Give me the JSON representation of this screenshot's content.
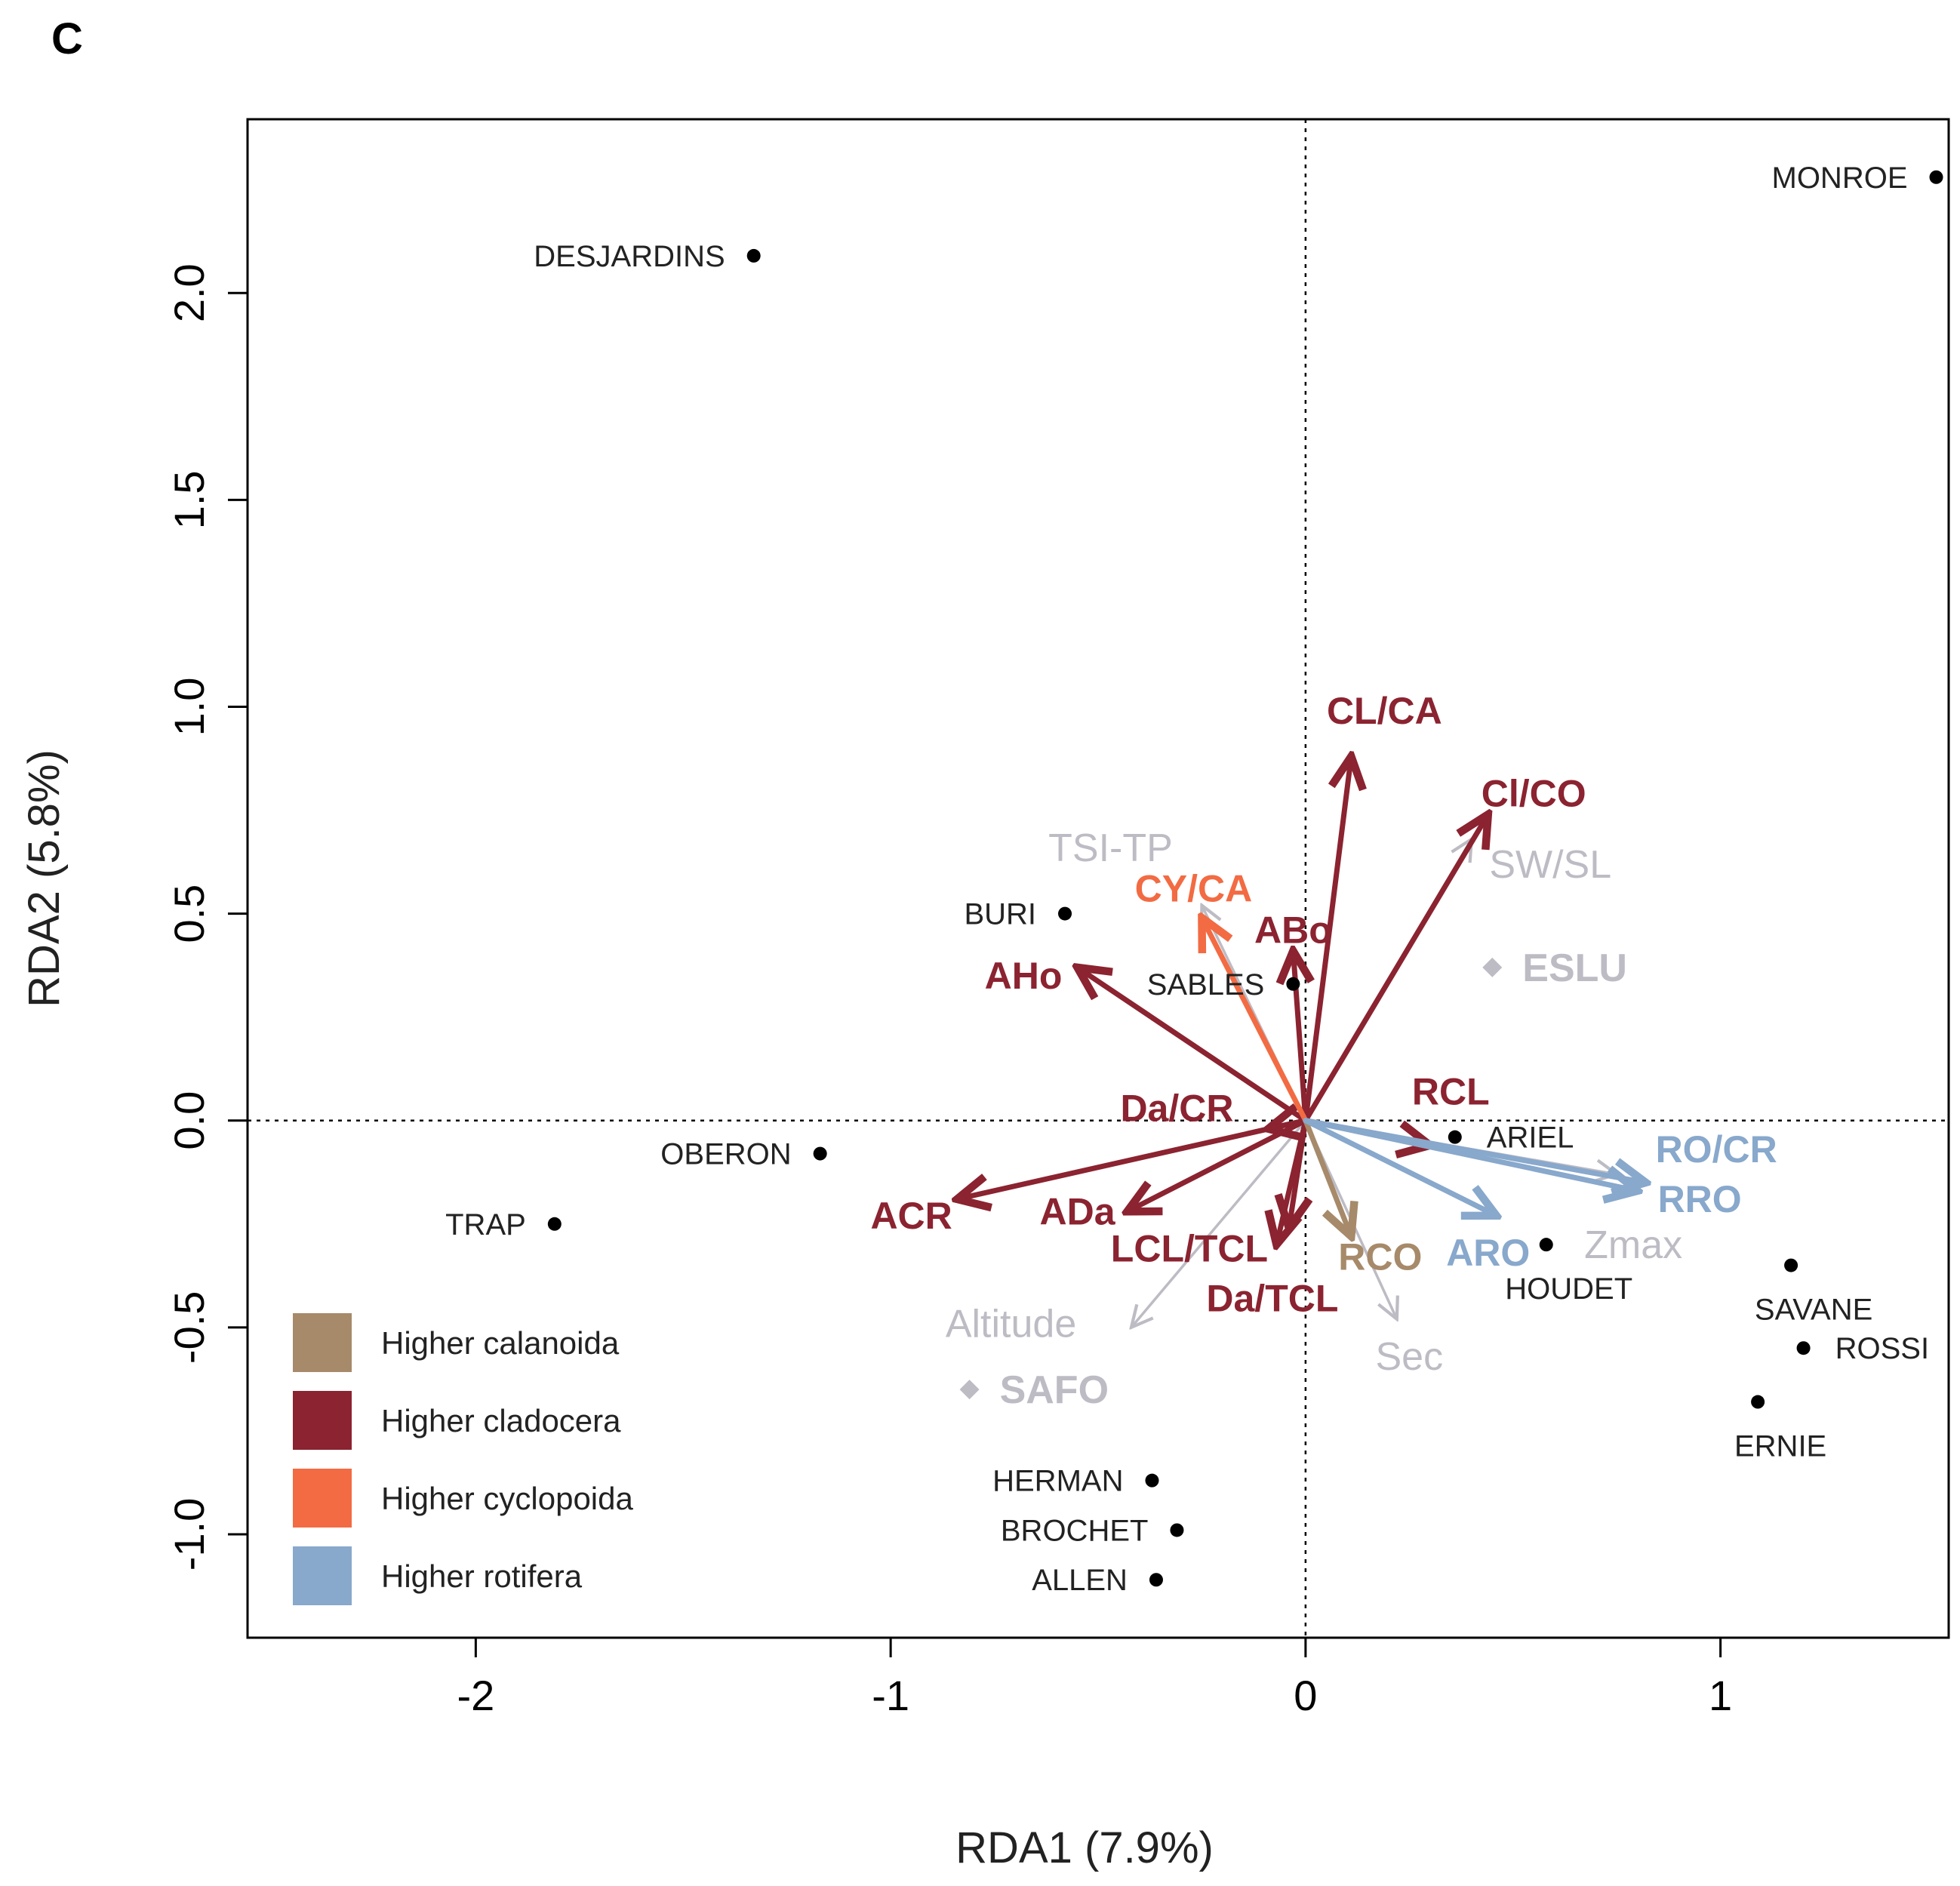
{
  "panel_label": "C",
  "chart_data": {
    "type": "scatter",
    "subtype": "rda_biplot",
    "title": "",
    "xlabel": "RDA1 (7.9%)",
    "ylabel": "RDA2 (5.8%)",
    "xlim": [
      -2.55,
      1.55
    ],
    "ylim": [
      -1.25,
      2.42
    ],
    "x_ticks": [
      {
        "value": -2,
        "label": "-2"
      },
      {
        "value": -1,
        "label": "-1"
      },
      {
        "value": 0,
        "label": "0"
      },
      {
        "value": 1,
        "label": "1"
      }
    ],
    "y_ticks": [
      {
        "value": -1.0,
        "label": "-1.0"
      },
      {
        "value": -0.5,
        "label": "-0.5"
      },
      {
        "value": 0.0,
        "label": "0.0"
      },
      {
        "value": 0.5,
        "label": "0.5"
      },
      {
        "value": 1.0,
        "label": "1.0"
      },
      {
        "value": 1.5,
        "label": "1.5"
      },
      {
        "value": 2.0,
        "label": "2.0"
      }
    ],
    "reference_lines": {
      "x0": true,
      "y0": true,
      "style": "dotted"
    },
    "colors": {
      "calanoida": "#a68a6a",
      "cladocera": "#8b2330",
      "cyclopoida": "#f26b43",
      "rotifera": "#88a8cc",
      "environment": "#bdbcc4",
      "sites": "#000000"
    },
    "sites": [
      {
        "name": "MONROE",
        "x": 1.52,
        "y": 2.28,
        "label_side": "left"
      },
      {
        "name": "DESJARDINS",
        "x": -1.33,
        "y": 2.09,
        "label_side": "left"
      },
      {
        "name": "BURI",
        "x": -0.58,
        "y": 0.5,
        "label_side": "left"
      },
      {
        "name": "SABLES",
        "x": -0.03,
        "y": 0.33,
        "label_side": "left"
      },
      {
        "name": "ARIEL",
        "x": 0.36,
        "y": -0.04,
        "label_side": "right"
      },
      {
        "name": "OBERON",
        "x": -1.17,
        "y": -0.08,
        "label_side": "left"
      },
      {
        "name": "TRAP",
        "x": -1.81,
        "y": -0.25,
        "label_side": "left"
      },
      {
        "name": "HOUDET",
        "x": 0.58,
        "y": -0.3,
        "label_side": "below"
      },
      {
        "name": "SAVANE",
        "x": 1.17,
        "y": -0.35,
        "label_side": "below"
      },
      {
        "name": "ROSSI",
        "x": 1.2,
        "y": -0.55,
        "label_side": "right"
      },
      {
        "name": "ERNIE",
        "x": 1.09,
        "y": -0.68,
        "label_side": "below"
      },
      {
        "name": "HERMAN",
        "x": -0.37,
        "y": -0.87,
        "label_side": "left"
      },
      {
        "name": "BROCHET",
        "x": -0.31,
        "y": -0.99,
        "label_side": "left"
      },
      {
        "name": "ALLEN",
        "x": -0.36,
        "y": -1.11,
        "label_side": "left"
      }
    ],
    "environment_arrows": [
      {
        "name": "TSI-TP",
        "x": -0.25,
        "y": 0.52,
        "lx": -0.47,
        "ly": 0.66
      },
      {
        "name": "SW/SL",
        "x": 0.4,
        "y": 0.68,
        "lx": 0.59,
        "ly": 0.62
      },
      {
        "name": "Altitude",
        "x": -0.42,
        "y": -0.5,
        "lx": -0.71,
        "ly": -0.49
      },
      {
        "name": "Sec",
        "x": 0.22,
        "y": -0.48,
        "lx": 0.25,
        "ly": -0.57
      },
      {
        "name": "Zmax",
        "x": 0.75,
        "y": -0.13,
        "lx": 0.79,
        "ly": -0.3
      }
    ],
    "environment_points": [
      {
        "name": "ESLU",
        "x": 0.45,
        "y": 0.37
      },
      {
        "name": "SAFO",
        "x": -0.81,
        "y": -0.65
      }
    ],
    "response_arrows": [
      {
        "name": "CL/CA",
        "group": "cladocera",
        "x": 0.11,
        "y": 0.88,
        "lx": 0.19,
        "ly": 0.99
      },
      {
        "name": "Cl/CO",
        "group": "cladocera",
        "x": 0.44,
        "y": 0.74,
        "lx": 0.55,
        "ly": 0.79
      },
      {
        "name": "ABo",
        "group": "cladocera",
        "x": -0.03,
        "y": 0.41,
        "lx": -0.03,
        "ly": 0.46
      },
      {
        "name": "AHo",
        "group": "cladocera",
        "x": -0.55,
        "y": 0.37,
        "lx": -0.68,
        "ly": 0.35
      },
      {
        "name": "Da/CR",
        "group": "cladocera",
        "x": -0.09,
        "y": -0.02,
        "lx": -0.31,
        "ly": 0.03
      },
      {
        "name": "ACR",
        "group": "cladocera",
        "x": -0.84,
        "y": -0.19,
        "lx": -0.95,
        "ly": -0.23
      },
      {
        "name": "ADa",
        "group": "cladocera",
        "x": -0.43,
        "y": -0.22,
        "lx": -0.55,
        "ly": -0.22
      },
      {
        "name": "LCL/TCL",
        "group": "cladocera",
        "x": -0.07,
        "y": -0.3,
        "lx": -0.28,
        "ly": -0.31
      },
      {
        "name": "Da/TCL",
        "group": "cladocera",
        "x": -0.04,
        "y": -0.26,
        "lx": -0.08,
        "ly": -0.43
      },
      {
        "name": "RCL",
        "group": "cladocera",
        "x": 0.3,
        "y": -0.06,
        "lx": 0.35,
        "ly": 0.07
      },
      {
        "name": "CY/CA",
        "group": "cyclopoida",
        "x": -0.25,
        "y": 0.49,
        "lx": -0.27,
        "ly": 0.56
      },
      {
        "name": "RCO",
        "group": "calanoida",
        "x": 0.11,
        "y": -0.28,
        "lx": 0.18,
        "ly": -0.33
      },
      {
        "name": "RO/CR",
        "group": "rotifera",
        "x": 0.82,
        "y": -0.15,
        "lx": 0.99,
        "ly": -0.07
      },
      {
        "name": "RRO",
        "group": "rotifera",
        "x": 0.8,
        "y": -0.17,
        "lx": 0.95,
        "ly": -0.19
      },
      {
        "name": "ARO",
        "group": "rotifera",
        "x": 0.46,
        "y": -0.23,
        "lx": 0.44,
        "ly": -0.32
      }
    ],
    "legend": {
      "position": "bottom-left",
      "entries": [
        {
          "label": "Higher calanoida",
          "group": "calanoida"
        },
        {
          "label": "Higher cladocera",
          "group": "cladocera"
        },
        {
          "label": "Higher cyclopoida",
          "group": "cyclopoida"
        },
        {
          "label": "Higher rotifera",
          "group": "rotifera"
        }
      ]
    }
  }
}
